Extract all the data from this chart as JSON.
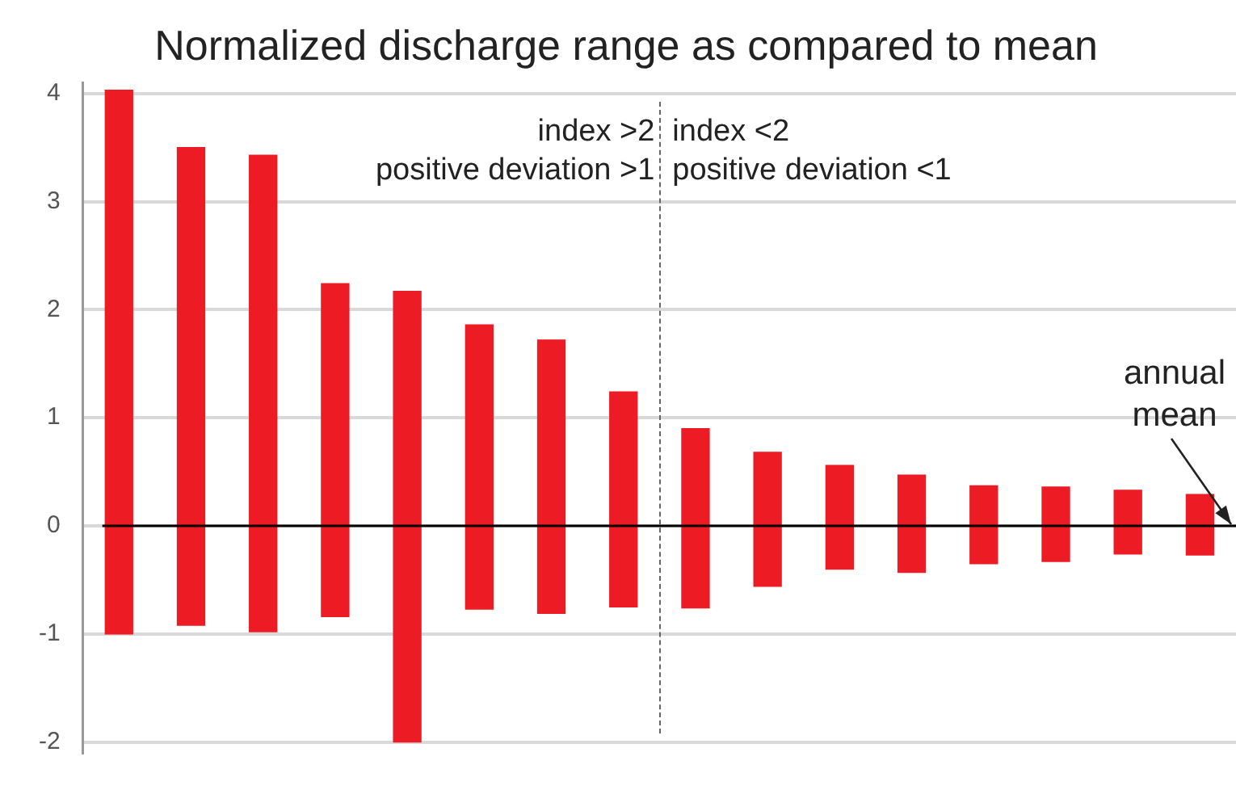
{
  "chart_data": {
    "type": "bar",
    "title": "Normalized discharge range as compared to mean",
    "categories": [
      null,
      null,
      null,
      null,
      null,
      null,
      null,
      null,
      null,
      null,
      null,
      null,
      null,
      null,
      null,
      null
    ],
    "base": [
      -1.0,
      -0.92,
      -0.98,
      -0.84,
      -2.0,
      -0.77,
      -0.81,
      -0.75,
      -0.76,
      -0.56,
      -0.4,
      -0.43,
      -0.35,
      -0.33,
      -0.26,
      -0.27
    ],
    "values": [
      5.03,
      4.42,
      4.41,
      3.08,
      4.17,
      2.63,
      2.53,
      1.99,
      1.66,
      1.24,
      0.96,
      0.9,
      0.72,
      0.69,
      0.59,
      0.56
    ],
    "color": "#ed1c24",
    "ylim": [
      -2.1,
      4.1
    ],
    "yticks": [
      -2,
      -1,
      0,
      1,
      2,
      3,
      4
    ],
    "grid": "y",
    "legend": false,
    "tick_labels": "y",
    "ref_lines": [
      {
        "axis": "y",
        "value": 0,
        "label": "annual mean",
        "color": "#000000",
        "line_style": "solid"
      }
    ],
    "annotations": [
      "index >2",
      "positive deviation >1",
      "index <2",
      "positive deviation <1"
    ]
  }
}
